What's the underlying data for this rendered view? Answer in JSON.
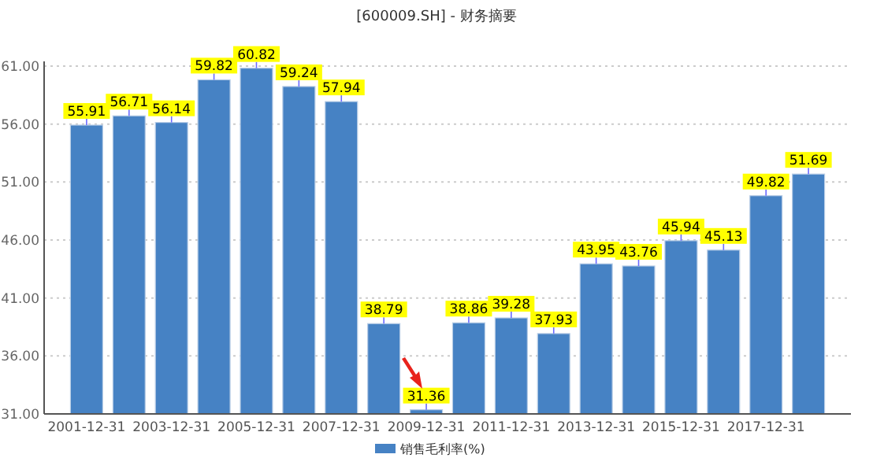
{
  "chart_data": {
    "type": "bar",
    "title": "[600009.SH] - 财务摘要",
    "categories": [
      "2001-12-31",
      null,
      "2003-12-31",
      null,
      "2005-12-31",
      null,
      "2007-12-31",
      null,
      "2009-12-31",
      null,
      "2011-12-31",
      null,
      "2013-12-31",
      null,
      "2015-12-31",
      null,
      "2017-12-31",
      null
    ],
    "series": [
      {
        "name": "销售毛利率(%)",
        "color": "#4682c4",
        "values": [
          55.91,
          56.71,
          56.14,
          59.82,
          60.82,
          59.24,
          57.94,
          38.79,
          31.36,
          38.86,
          39.28,
          37.93,
          43.95,
          43.76,
          45.94,
          45.13,
          49.82,
          51.69
        ]
      }
    ],
    "ylim": [
      31,
      61
    ],
    "yticks": [
      {
        "value": 31,
        "label": "31.00"
      },
      {
        "value": 36,
        "label": "36.00"
      },
      {
        "value": 41,
        "label": "41.00"
      },
      {
        "value": 46,
        "label": "46.00"
      },
      {
        "value": 51,
        "label": "51.00"
      },
      {
        "value": 56,
        "label": "56.00"
      },
      {
        "value": 61,
        "label": "61.00"
      }
    ],
    "grid": "y",
    "legend": "bottom",
    "data_labels": true
  }
}
